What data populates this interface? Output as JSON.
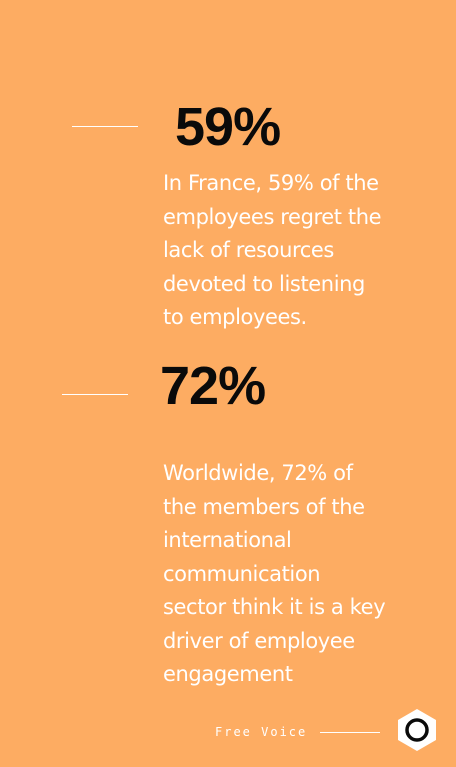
{
  "stats": [
    {
      "value": "59%",
      "description_lines": [
        "In France, 59% of the",
        "employees regret the",
        "lack of resources",
        "devoted to listening",
        "to employees."
      ]
    },
    {
      "value": "72%",
      "description_lines": [
        "Worldwide, 72% of",
        "the members of the",
        "international",
        "communication",
        "sector think it is a key",
        "driver of employee",
        "engagement"
      ]
    }
  ],
  "footer": {
    "brand": "Free Voice",
    "logo_icon": "hexagon-ring-logo-icon"
  },
  "colors": {
    "background": "#FDAC62",
    "stat_text": "#0a0a0a",
    "body_text": "#ffffff",
    "logo_fill": "#ffffff"
  }
}
